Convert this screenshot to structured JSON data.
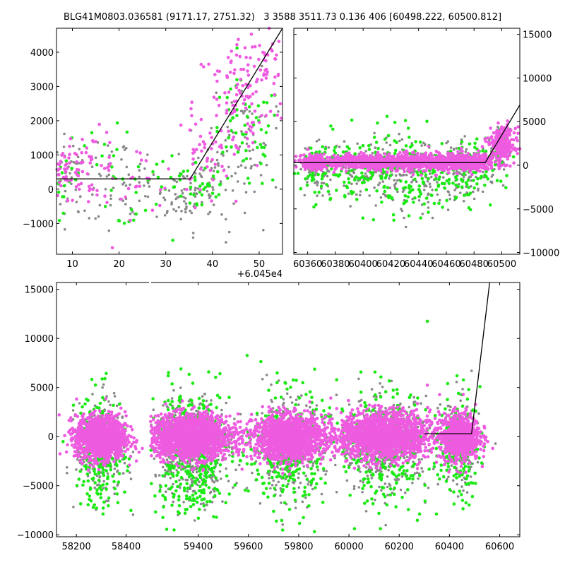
{
  "title": "BLG41M0803.036581 (9171.17, 2751.32)   3 3588 3511.73 0.136 406 [60498.222, 60500.812]",
  "colors": {
    "magenta": "#ee5ae0",
    "green": "#1bea14",
    "gray": "#888888",
    "model": "#000000"
  },
  "chart_data": [
    {
      "panel": "top-left",
      "type": "scatter",
      "x_offset_label": "+6.045e4",
      "xlim": [
        6.6,
        55
      ],
      "ylim": [
        -1900,
        4700
      ],
      "xticks": [
        10,
        20,
        30,
        40,
        50
      ],
      "xtick_labels": [
        "10",
        "20",
        "30",
        "40",
        "50"
      ],
      "yticks": [
        -1000,
        0,
        1000,
        2000,
        3000,
        4000
      ],
      "ytick_labels": [
        "−1000",
        "0",
        "1000",
        "2000",
        "3000",
        "4000"
      ],
      "model_line": [
        [
          6.6,
          300
        ],
        [
          35.2,
          300
        ],
        [
          55,
          4700
        ]
      ],
      "series": [
        {
          "color": "gray",
          "clusters": [
            [
              9,
              400,
              2,
              600,
              30
            ],
            [
              15,
              200,
              4,
              700,
              40
            ],
            [
              25,
              -100,
              6,
              500,
              50
            ],
            [
              33,
              -200,
              3,
              400,
              30
            ],
            [
              40,
              200,
              4,
              700,
              60
            ],
            [
              47,
              1500,
              4,
              900,
              60
            ]
          ]
        },
        {
          "color": "green",
          "clusters": [
            [
              8,
              400,
              2,
              500,
              20
            ],
            [
              18,
              300,
              6,
              700,
              25
            ],
            [
              30,
              0,
              5,
              500,
              20
            ],
            [
              38,
              100,
              3,
              500,
              30
            ],
            [
              47,
              1500,
              4,
              800,
              60
            ]
          ]
        },
        {
          "color": "magenta",
          "clusters": [
            [
              9,
              500,
              2,
              400,
              40
            ],
            [
              14,
              700,
              3,
              500,
              40
            ],
            [
              22,
              300,
              6,
              500,
              30
            ],
            [
              38,
              1000,
              3,
              600,
              40
            ],
            [
              46,
              2500,
              5,
              1000,
              100
            ],
            [
              51,
              3800,
              2,
              500,
              40
            ]
          ]
        }
      ]
    },
    {
      "panel": "top-right",
      "type": "scatter",
      "xlim": [
        60350,
        60513
      ],
      "ylim": [
        -10200,
        15700
      ],
      "xticks": [
        60360,
        60380,
        60400,
        60420,
        60440,
        60460,
        60480,
        60500
      ],
      "xtick_labels": [
        "60360",
        "60380",
        "60400",
        "60420",
        "60440",
        "60460",
        "60480",
        "60500"
      ],
      "yticks": [
        -10000,
        -5000,
        0,
        5000,
        10000,
        15000
      ],
      "ytick_labels": [
        "−10000",
        "−5000",
        "0",
        "5000",
        "10000",
        "15000"
      ],
      "model_line": [
        [
          60350,
          300
        ],
        [
          60488,
          300
        ],
        [
          60513,
          6900
        ]
      ],
      "series": [
        {
          "color": "gray",
          "clusters": [
            [
              60365,
              -600,
              5,
              1500,
              60
            ],
            [
              60400,
              -700,
              20,
              1800,
              120
            ],
            [
              60440,
              -800,
              20,
              2000,
              140
            ],
            [
              60475,
              -600,
              10,
              1600,
              80
            ],
            [
              60498,
              1500,
              4,
              1200,
              30
            ]
          ]
        },
        {
          "color": "green",
          "clusters": [
            [
              60365,
              -500,
              5,
              1800,
              50
            ],
            [
              60400,
              -800,
              20,
              2200,
              120
            ],
            [
              60440,
              -900,
              20,
              2300,
              140
            ],
            [
              60475,
              -700,
              10,
              1800,
              80
            ],
            [
              60498,
              1500,
              4,
              1300,
              30
            ]
          ]
        },
        {
          "color": "magenta",
          "clusters": [
            [
              60365,
              400,
              4,
              400,
              200
            ],
            [
              60400,
              400,
              20,
              400,
              420
            ],
            [
              60440,
              400,
              20,
              500,
              500
            ],
            [
              60475,
              300,
              10,
              500,
              300
            ],
            [
              60500,
              2300,
              5,
              1000,
              250
            ]
          ]
        }
      ]
    },
    {
      "panel": "bottom",
      "type": "scatter",
      "broken_axis": true,
      "segments": [
        {
          "xlim": [
            58120,
            58495
          ],
          "xticks": [
            58200,
            58400
          ],
          "xtick_labels": [
            "58200",
            "58400"
          ]
        },
        {
          "xlim": [
            59210,
            60680
          ],
          "xticks": [
            59400,
            59600,
            59800,
            60000,
            60200,
            60400,
            60600
          ],
          "xtick_labels": [
            "59400",
            "59600",
            "59800",
            "60000",
            "60200",
            "60400",
            "60600"
          ]
        }
      ],
      "ylim": [
        -10200,
        15700
      ],
      "yticks": [
        -10000,
        -5000,
        0,
        5000,
        10000,
        15000
      ],
      "ytick_labels": [
        "−10000",
        "−5000",
        "0",
        "5000",
        "10000",
        "15000"
      ],
      "model_line": [
        [
          60300,
          300
        ],
        [
          60488,
          300
        ],
        [
          60560,
          15700
        ]
      ],
      "series": [
        {
          "color": "gray",
          "clusters": [
            [
              58300,
              -1000,
              50,
              2300,
              300
            ],
            [
              59370,
              -1200,
              80,
              2500,
              450
            ],
            [
              59760,
              -1000,
              70,
              2400,
              350
            ],
            [
              60140,
              -900,
              90,
              2400,
              400
            ],
            [
              60440,
              -900,
              40,
              2300,
              180
            ]
          ]
        },
        {
          "color": "green",
          "clusters": [
            [
              58300,
              -1300,
              50,
              3000,
              220
            ],
            [
              59370,
              -1600,
              80,
              3300,
              400
            ],
            [
              59760,
              -1300,
              70,
              3000,
              300
            ],
            [
              60140,
              -1100,
              90,
              3000,
              300
            ],
            [
              60440,
              -1000,
              40,
              2800,
              150
            ]
          ]
        },
        {
          "color": "magenta",
          "clusters": [
            [
              58300,
              -100,
              50,
              1100,
              1300
            ],
            [
              59370,
              0,
              80,
              1100,
              1700
            ],
            [
              59760,
              -100,
              70,
              1100,
              1500
            ],
            [
              60140,
              100,
              90,
              1200,
              1600
            ],
            [
              60440,
              0,
              40,
              1200,
              700
            ]
          ]
        }
      ]
    }
  ]
}
